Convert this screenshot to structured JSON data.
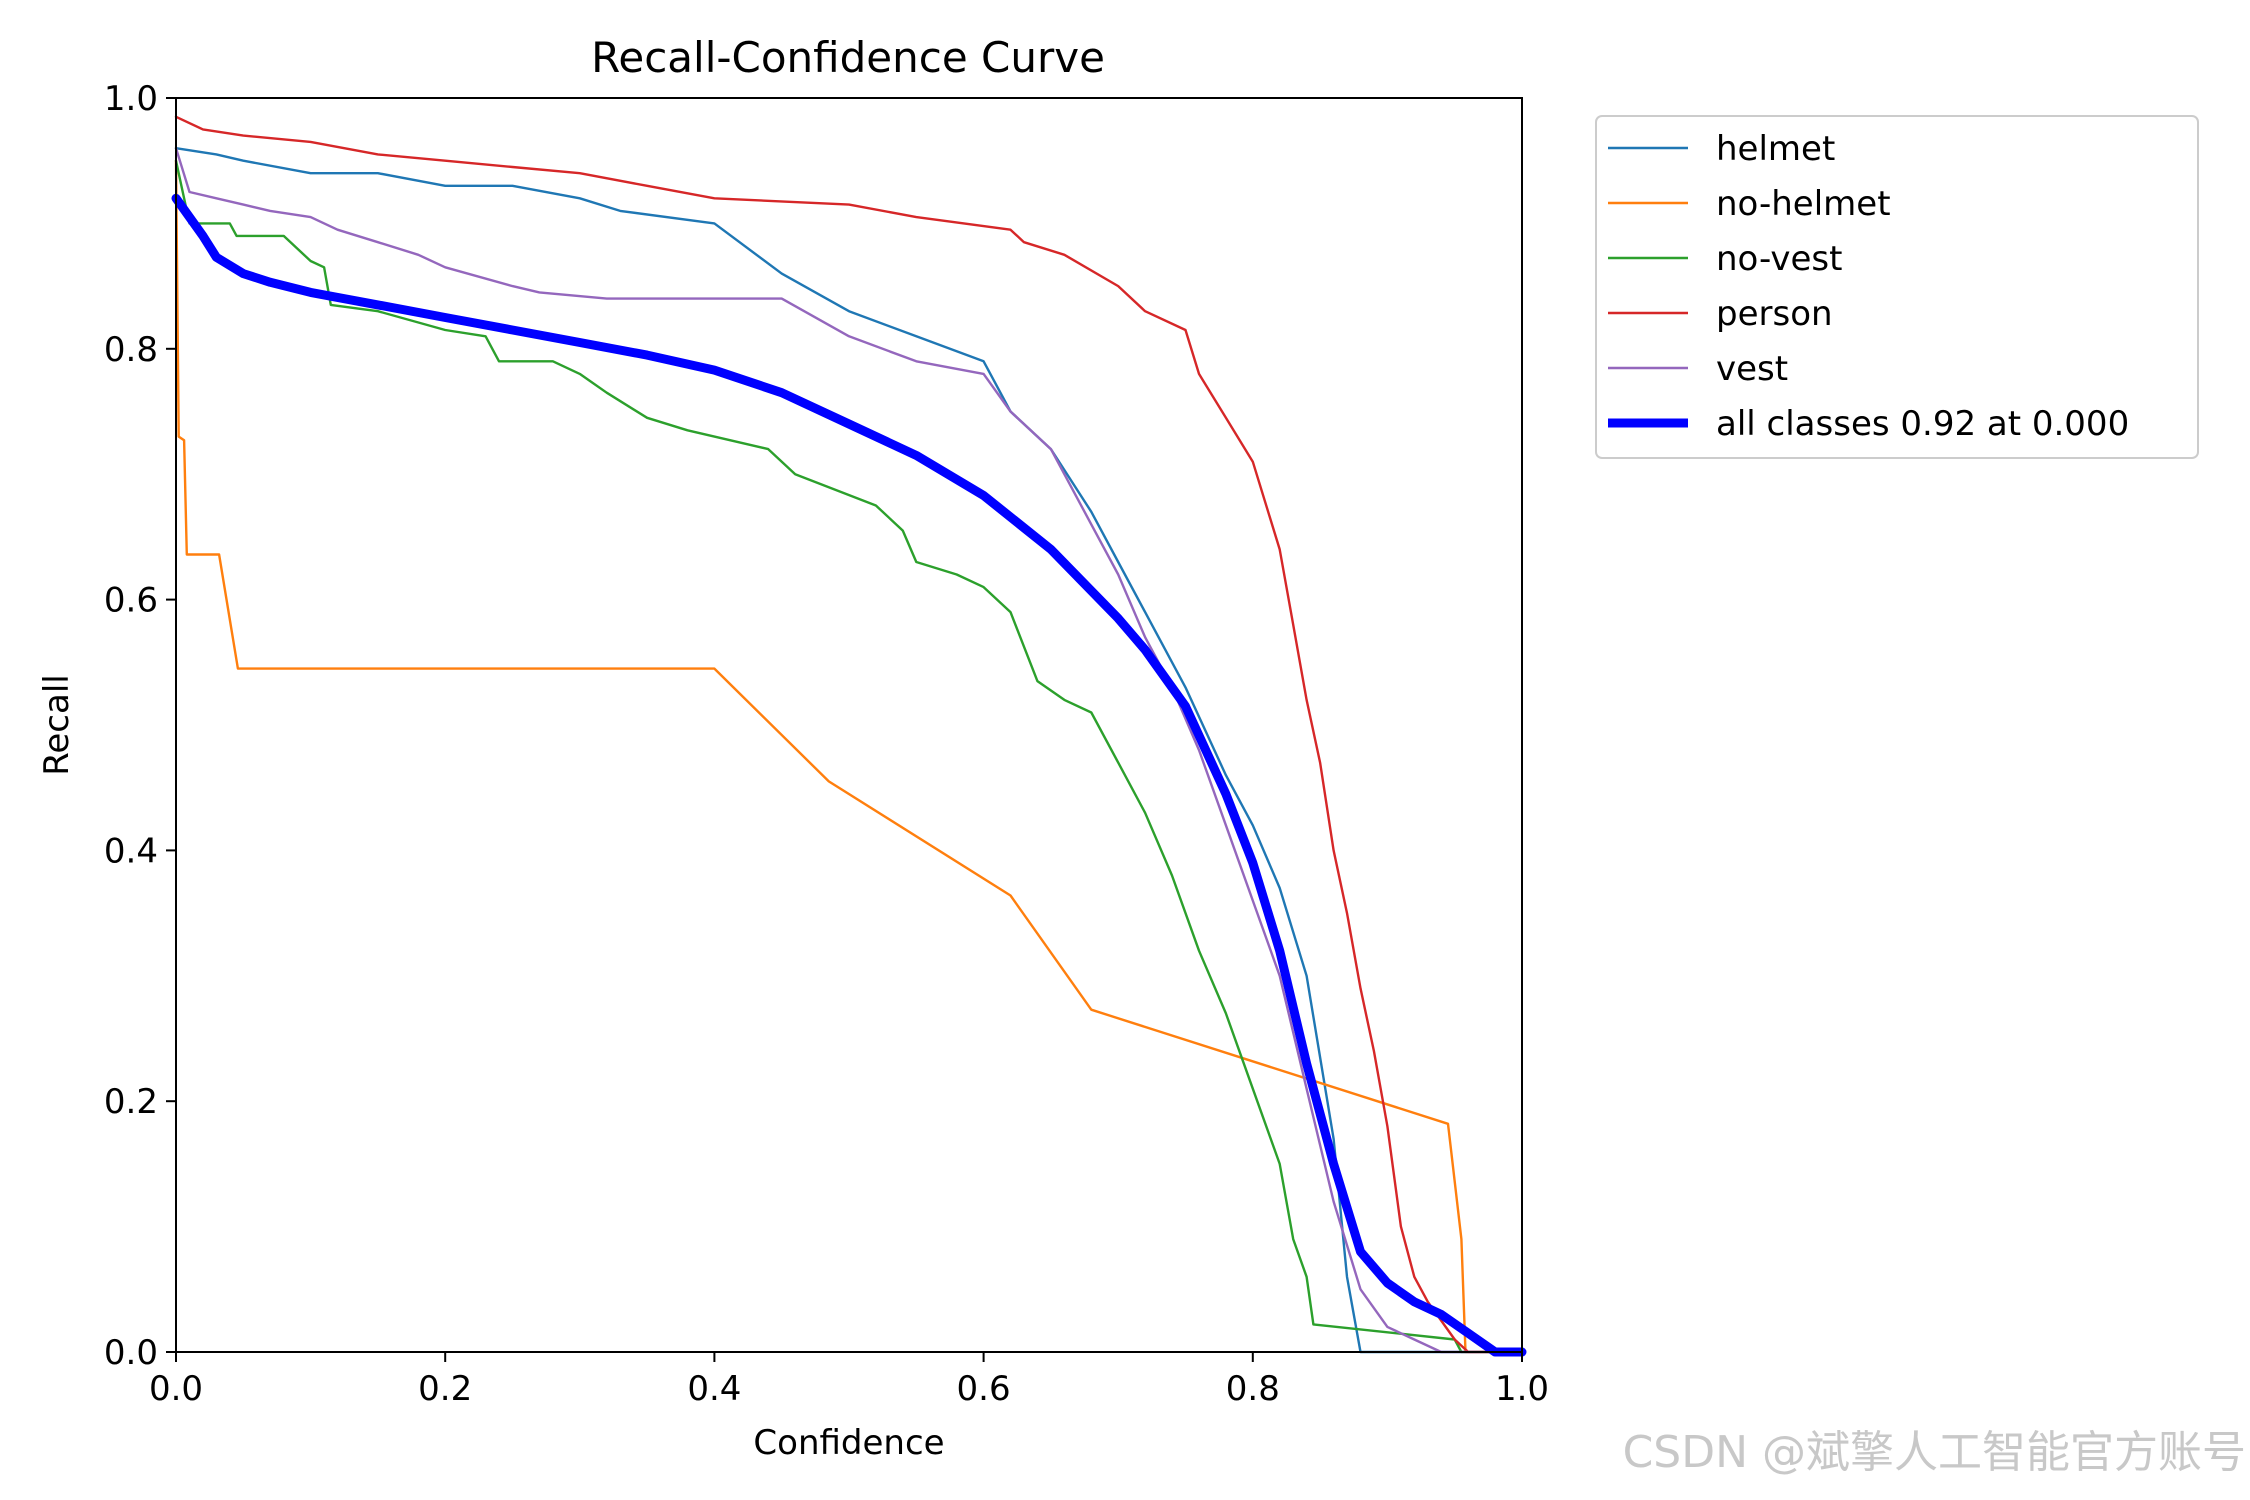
{
  "chart_data": {
    "type": "line",
    "title": "Recall-Confidence Curve",
    "xlabel": "Confidence",
    "ylabel": "Recall",
    "xlim": [
      0,
      1
    ],
    "ylim": [
      0,
      1
    ],
    "xticks": [
      "0.0",
      "0.2",
      "0.4",
      "0.6",
      "0.8",
      "1.0"
    ],
    "yticks": [
      "0.0",
      "0.2",
      "0.4",
      "0.6",
      "0.8",
      "1.0"
    ],
    "grid": false,
    "legend_position": "outside-top-right",
    "series": [
      {
        "name": "helmet",
        "color": "#1f77b4",
        "points": [
          [
            0,
            0.96
          ],
          [
            0.03,
            0.955
          ],
          [
            0.05,
            0.95
          ],
          [
            0.1,
            0.94
          ],
          [
            0.15,
            0.94
          ],
          [
            0.2,
            0.93
          ],
          [
            0.25,
            0.93
          ],
          [
            0.3,
            0.92
          ],
          [
            0.33,
            0.91
          ],
          [
            0.4,
            0.9
          ],
          [
            0.45,
            0.86
          ],
          [
            0.5,
            0.83
          ],
          [
            0.55,
            0.81
          ],
          [
            0.6,
            0.79
          ],
          [
            0.62,
            0.75
          ],
          [
            0.65,
            0.72
          ],
          [
            0.68,
            0.67
          ],
          [
            0.7,
            0.63
          ],
          [
            0.72,
            0.59
          ],
          [
            0.75,
            0.53
          ],
          [
            0.78,
            0.46
          ],
          [
            0.8,
            0.42
          ],
          [
            0.82,
            0.37
          ],
          [
            0.84,
            0.3
          ],
          [
            0.86,
            0.17
          ],
          [
            0.87,
            0.06
          ],
          [
            0.88,
            0.0
          ],
          [
            1.0,
            0.0
          ]
        ]
      },
      {
        "name": "no-helmet",
        "color": "#ff7f0e",
        "points": [
          [
            0,
            0.95
          ],
          [
            0.002,
            0.73
          ],
          [
            0.006,
            0.727
          ],
          [
            0.008,
            0.636
          ],
          [
            0.032,
            0.636
          ],
          [
            0.046,
            0.545
          ],
          [
            0.4,
            0.545
          ],
          [
            0.485,
            0.455
          ],
          [
            0.62,
            0.364
          ],
          [
            0.68,
            0.273
          ],
          [
            0.945,
            0.182
          ],
          [
            0.955,
            0.09
          ],
          [
            0.958,
            0.0
          ],
          [
            1.0,
            0.0
          ]
        ]
      },
      {
        "name": "no-vest",
        "color": "#2ca02c",
        "points": [
          [
            0,
            0.95
          ],
          [
            0.01,
            0.9
          ],
          [
            0.04,
            0.9
          ],
          [
            0.045,
            0.89
          ],
          [
            0.08,
            0.89
          ],
          [
            0.1,
            0.87
          ],
          [
            0.11,
            0.865
          ],
          [
            0.115,
            0.835
          ],
          [
            0.15,
            0.83
          ],
          [
            0.2,
            0.815
          ],
          [
            0.23,
            0.81
          ],
          [
            0.24,
            0.79
          ],
          [
            0.28,
            0.79
          ],
          [
            0.3,
            0.78
          ],
          [
            0.32,
            0.765
          ],
          [
            0.35,
            0.745
          ],
          [
            0.38,
            0.735
          ],
          [
            0.44,
            0.72
          ],
          [
            0.46,
            0.7
          ],
          [
            0.52,
            0.675
          ],
          [
            0.54,
            0.655
          ],
          [
            0.55,
            0.63
          ],
          [
            0.58,
            0.62
          ],
          [
            0.6,
            0.61
          ],
          [
            0.62,
            0.59
          ],
          [
            0.64,
            0.535
          ],
          [
            0.66,
            0.52
          ],
          [
            0.68,
            0.51
          ],
          [
            0.7,
            0.47
          ],
          [
            0.72,
            0.43
          ],
          [
            0.74,
            0.38
          ],
          [
            0.76,
            0.32
          ],
          [
            0.78,
            0.27
          ],
          [
            0.8,
            0.21
          ],
          [
            0.82,
            0.15
          ],
          [
            0.83,
            0.09
          ],
          [
            0.84,
            0.06
          ],
          [
            0.845,
            0.022
          ],
          [
            0.95,
            0.01
          ],
          [
            0.955,
            0.0
          ],
          [
            1.0,
            0.0
          ]
        ]
      },
      {
        "name": "person",
        "color": "#d62728",
        "points": [
          [
            0,
            0.985
          ],
          [
            0.02,
            0.975
          ],
          [
            0.05,
            0.97
          ],
          [
            0.1,
            0.965
          ],
          [
            0.15,
            0.955
          ],
          [
            0.2,
            0.95
          ],
          [
            0.25,
            0.945
          ],
          [
            0.3,
            0.94
          ],
          [
            0.35,
            0.93
          ],
          [
            0.4,
            0.92
          ],
          [
            0.5,
            0.915
          ],
          [
            0.55,
            0.905
          ],
          [
            0.62,
            0.895
          ],
          [
            0.63,
            0.885
          ],
          [
            0.66,
            0.875
          ],
          [
            0.7,
            0.85
          ],
          [
            0.72,
            0.83
          ],
          [
            0.75,
            0.815
          ],
          [
            0.76,
            0.78
          ],
          [
            0.78,
            0.745
          ],
          [
            0.8,
            0.71
          ],
          [
            0.82,
            0.64
          ],
          [
            0.83,
            0.58
          ],
          [
            0.84,
            0.52
          ],
          [
            0.85,
            0.47
          ],
          [
            0.86,
            0.4
          ],
          [
            0.87,
            0.35
          ],
          [
            0.88,
            0.29
          ],
          [
            0.89,
            0.24
          ],
          [
            0.9,
            0.18
          ],
          [
            0.91,
            0.1
          ],
          [
            0.92,
            0.06
          ],
          [
            0.93,
            0.04
          ],
          [
            0.95,
            0.01
          ],
          [
            0.96,
            0.0
          ],
          [
            1.0,
            0.0
          ]
        ]
      },
      {
        "name": "vest",
        "color": "#9467bd",
        "points": [
          [
            0,
            0.96
          ],
          [
            0.01,
            0.925
          ],
          [
            0.03,
            0.92
          ],
          [
            0.05,
            0.915
          ],
          [
            0.07,
            0.91
          ],
          [
            0.1,
            0.905
          ],
          [
            0.12,
            0.895
          ],
          [
            0.15,
            0.885
          ],
          [
            0.18,
            0.875
          ],
          [
            0.2,
            0.865
          ],
          [
            0.25,
            0.85
          ],
          [
            0.27,
            0.845
          ],
          [
            0.32,
            0.84
          ],
          [
            0.45,
            0.84
          ],
          [
            0.5,
            0.81
          ],
          [
            0.55,
            0.79
          ],
          [
            0.6,
            0.78
          ],
          [
            0.62,
            0.75
          ],
          [
            0.65,
            0.72
          ],
          [
            0.68,
            0.66
          ],
          [
            0.7,
            0.62
          ],
          [
            0.72,
            0.57
          ],
          [
            0.74,
            0.53
          ],
          [
            0.76,
            0.48
          ],
          [
            0.78,
            0.42
          ],
          [
            0.8,
            0.36
          ],
          [
            0.82,
            0.3
          ],
          [
            0.84,
            0.21
          ],
          [
            0.86,
            0.12
          ],
          [
            0.88,
            0.05
          ],
          [
            0.9,
            0.02
          ],
          [
            0.92,
            0.01
          ],
          [
            0.94,
            0.0
          ],
          [
            1.0,
            0.0
          ]
        ]
      },
      {
        "name": "all classes 0.92 at 0.000",
        "color": "#0000ff",
        "bold": true,
        "points": [
          [
            0,
            0.92
          ],
          [
            0.02,
            0.89
          ],
          [
            0.03,
            0.873
          ],
          [
            0.05,
            0.86
          ],
          [
            0.07,
            0.853
          ],
          [
            0.1,
            0.845
          ],
          [
            0.15,
            0.835
          ],
          [
            0.2,
            0.825
          ],
          [
            0.25,
            0.815
          ],
          [
            0.3,
            0.805
          ],
          [
            0.35,
            0.795
          ],
          [
            0.4,
            0.783
          ],
          [
            0.45,
            0.765
          ],
          [
            0.5,
            0.74
          ],
          [
            0.55,
            0.715
          ],
          [
            0.6,
            0.683
          ],
          [
            0.65,
            0.64
          ],
          [
            0.7,
            0.585
          ],
          [
            0.72,
            0.56
          ],
          [
            0.75,
            0.515
          ],
          [
            0.78,
            0.445
          ],
          [
            0.8,
            0.39
          ],
          [
            0.82,
            0.32
          ],
          [
            0.84,
            0.23
          ],
          [
            0.86,
            0.15
          ],
          [
            0.88,
            0.08
          ],
          [
            0.9,
            0.055
          ],
          [
            0.92,
            0.04
          ],
          [
            0.94,
            0.03
          ],
          [
            0.96,
            0.015
          ],
          [
            0.98,
            0.0
          ],
          [
            1.0,
            0.0
          ]
        ]
      }
    ]
  },
  "watermark": "CSDN @斌擎人工智能官方账号"
}
